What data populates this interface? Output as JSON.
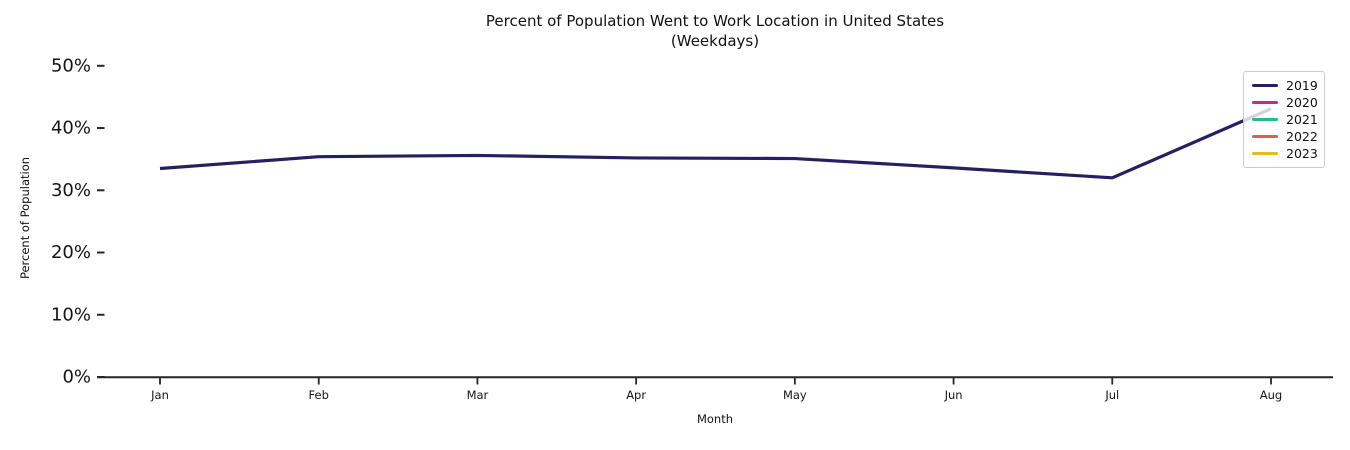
{
  "chart_data": {
    "type": "line",
    "title": "Percent of Population Went to Work Location in United States",
    "subtitle": "(Weekdays)",
    "xlabel": "Month",
    "ylabel": "Percent of Population",
    "x": [
      "Jan",
      "Feb",
      "Mar",
      "Apr",
      "May",
      "Jun",
      "Jul",
      "Aug"
    ],
    "y_tick_labels": [
      "0%",
      "10%",
      "20%",
      "30%",
      "40%",
      "50%"
    ],
    "y_tick_values": [
      0,
      10,
      20,
      30,
      40,
      50
    ],
    "ylim": [
      0,
      51.5
    ],
    "grid": false,
    "legend_position": "upper right",
    "series": [
      {
        "name": "2019",
        "color": "#252161",
        "values": [
          33.5,
          35.4,
          35.6,
          35.2,
          35.1,
          33.6,
          32.0,
          43.1
        ]
      },
      {
        "name": "2020",
        "color": "#c62a85",
        "values": []
      },
      {
        "name": "2021",
        "color": "#2ab78c",
        "values": []
      },
      {
        "name": "2022",
        "color": "#d9605a",
        "values": []
      },
      {
        "name": "2023",
        "color": "#eab824",
        "values": []
      }
    ],
    "axis_color": "#262626"
  }
}
